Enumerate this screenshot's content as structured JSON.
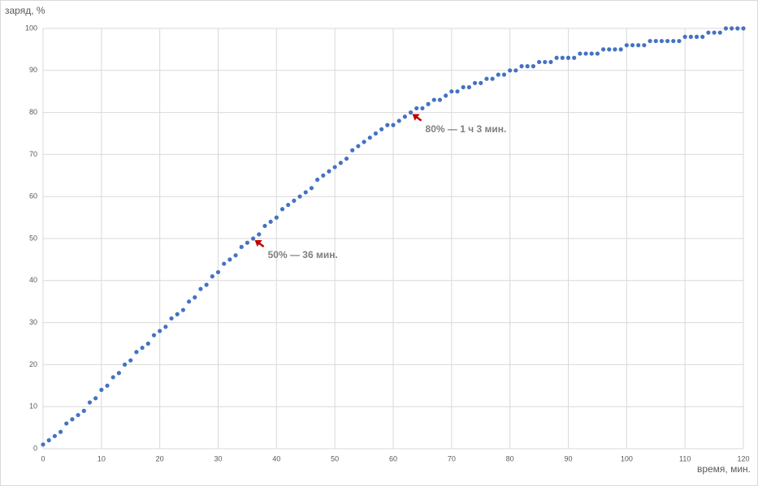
{
  "chart_data": {
    "type": "scatter",
    "x_label": "время, мин.",
    "y_label": "заряд, %",
    "x": [
      0,
      1,
      2,
      3,
      4,
      5,
      6,
      7,
      8,
      9,
      10,
      11,
      12,
      13,
      14,
      15,
      16,
      17,
      18,
      19,
      20,
      21,
      22,
      23,
      24,
      25,
      26,
      27,
      28,
      29,
      30,
      31,
      32,
      33,
      34,
      35,
      36,
      37,
      38,
      39,
      40,
      41,
      42,
      43,
      44,
      45,
      46,
      47,
      48,
      49,
      50,
      51,
      52,
      53,
      54,
      55,
      56,
      57,
      58,
      59,
      60,
      61,
      62,
      63,
      64,
      65,
      66,
      67,
      68,
      69,
      70,
      71,
      72,
      73,
      74,
      75,
      76,
      77,
      78,
      79,
      80,
      81,
      82,
      83,
      84,
      85,
      86,
      87,
      88,
      89,
      90,
      91,
      92,
      93,
      94,
      95,
      96,
      97,
      98,
      99,
      100,
      101,
      102,
      103,
      104,
      105,
      106,
      107,
      108,
      109,
      110,
      111,
      112,
      113,
      114,
      115,
      116,
      117,
      118,
      119,
      120
    ],
    "values": [
      1,
      2,
      3,
      4,
      6,
      7,
      8,
      9,
      11,
      12,
      14,
      15,
      17,
      18,
      20,
      21,
      23,
      24,
      25,
      27,
      28,
      29,
      31,
      32,
      33,
      35,
      36,
      38,
      39,
      41,
      42,
      44,
      45,
      46,
      48,
      49,
      50,
      51,
      53,
      54,
      55,
      57,
      58,
      59,
      60,
      61,
      62,
      64,
      65,
      66,
      67,
      68,
      69,
      71,
      72,
      73,
      74,
      75,
      76,
      77,
      77,
      78,
      79,
      80,
      81,
      81,
      82,
      83,
      83,
      84,
      85,
      85,
      86,
      86,
      87,
      87,
      88,
      88,
      89,
      89,
      90,
      90,
      91,
      91,
      91,
      92,
      92,
      92,
      93,
      93,
      93,
      93,
      94,
      94,
      94,
      94,
      95,
      95,
      95,
      95,
      96,
      96,
      96,
      96,
      97,
      97,
      97,
      97,
      97,
      97,
      98,
      98,
      98,
      98,
      99,
      99,
      99,
      100,
      100,
      100,
      100
    ],
    "color": "#4472c4",
    "xlim": [
      0,
      120
    ],
    "xticks": [
      0,
      10,
      20,
      30,
      40,
      50,
      60,
      70,
      80,
      90,
      100,
      110,
      120
    ],
    "ylim": [
      0,
      100
    ],
    "yticks": [
      0,
      10,
      20,
      30,
      40,
      50,
      60,
      70,
      80,
      90,
      100
    ],
    "grid": true,
    "annotations": [
      {
        "text": "50% — 36 мин.",
        "x": 36,
        "y": 50,
        "color": "#c00000"
      },
      {
        "text": "80% — 1 ч 3 мин.",
        "x": 63,
        "y": 80,
        "color": "#c00000"
      }
    ]
  }
}
